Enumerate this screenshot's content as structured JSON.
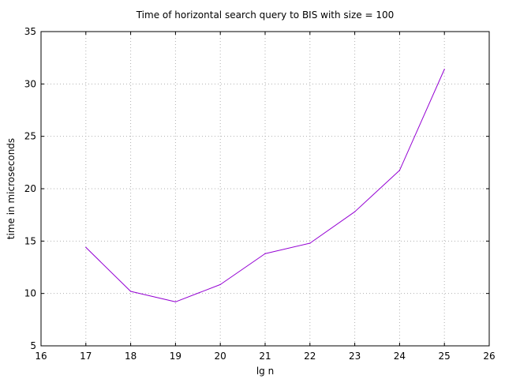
{
  "chart_data": {
    "type": "line",
    "title": "Time of horizontal search query to BIS with size = 100",
    "xlabel": "lg n",
    "ylabel": "time in microseconds",
    "xlim": [
      16,
      26
    ],
    "ylim": [
      5,
      35
    ],
    "xticks": [
      16,
      17,
      18,
      19,
      20,
      21,
      22,
      23,
      24,
      25,
      26
    ],
    "yticks": [
      5,
      10,
      15,
      20,
      25,
      30,
      35
    ],
    "grid": true,
    "legend": "none",
    "colors": {
      "series": "#9400d3",
      "grid": "#b0b0b0",
      "axes": "#000000"
    },
    "series": [
      {
        "x": [
          17,
          18,
          19,
          20,
          21,
          22,
          23,
          24,
          25
        ],
        "y": [
          14.4,
          10.2,
          9.2,
          10.85,
          13.8,
          14.8,
          17.8,
          21.75,
          31.4
        ]
      }
    ]
  }
}
